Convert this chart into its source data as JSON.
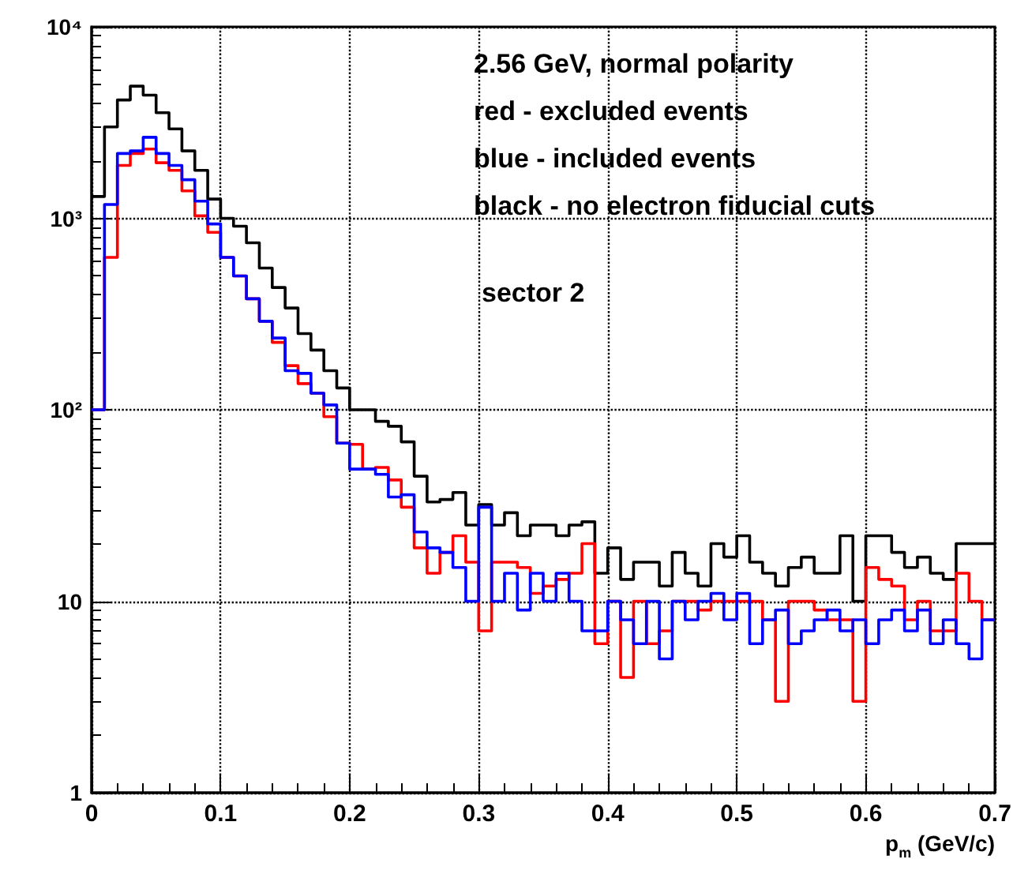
{
  "chart_data": {
    "type": "histogram",
    "xlabel": "p$_{m}$ (GeV/c)",
    "annotations": [
      "2.56 GeV, normal polarity",
      "red - excluded events",
      "blue - included events",
      "black - no electron fiducial cuts",
      "sector 2"
    ],
    "bins": [
      0,
      0.01,
      0.02,
      0.03,
      0.04,
      0.05,
      0.06,
      0.07,
      0.08,
      0.09,
      0.1,
      0.11,
      0.12,
      0.13,
      0.14,
      0.15,
      0.16,
      0.17,
      0.18,
      0.19,
      0.2,
      0.21,
      0.22,
      0.23,
      0.24,
      0.25,
      0.26,
      0.27,
      0.28,
      0.29,
      0.3,
      0.31,
      0.32,
      0.33,
      0.34,
      0.35,
      0.36,
      0.37,
      0.38,
      0.39,
      0.4,
      0.41,
      0.42,
      0.43,
      0.44,
      0.45,
      0.46,
      0.47,
      0.48,
      0.49,
      0.5,
      0.51,
      0.52,
      0.53,
      0.54,
      0.55,
      0.56,
      0.57,
      0.58,
      0.59,
      0.6,
      0.61,
      0.62,
      0.63,
      0.64,
      0.65,
      0.66,
      0.67,
      0.68,
      0.69,
      0.7
    ],
    "series": [
      {
        "color": "#000000",
        "values": [
          1300,
          3000,
          4150,
          4900,
          4400,
          3560,
          2930,
          2250,
          1780,
          1260,
          1000,
          910,
          745,
          550,
          435,
          340,
          250,
          205,
          160,
          130,
          100,
          100,
          87,
          82,
          68,
          45,
          33,
          34,
          37,
          25,
          32,
          25,
          29,
          22,
          25,
          25,
          22,
          25,
          26,
          14,
          19,
          13,
          16,
          16,
          12,
          18,
          14,
          12,
          20,
          17,
          22,
          16,
          14,
          12,
          15,
          17,
          14,
          14,
          22,
          10,
          22,
          22,
          18,
          15,
          17,
          14,
          13,
          20,
          20,
          20
        ]
      },
      {
        "color": "#ff0000",
        "values": [
          100,
          625,
          1890,
          2180,
          2300,
          1950,
          1780,
          1390,
          1030,
          845,
          625,
          500,
          380,
          290,
          225,
          170,
          137,
          122,
          92,
          67,
          66,
          49,
          50,
          43,
          31,
          19,
          14,
          18,
          22,
          16,
          7,
          16,
          16,
          15,
          11,
          12,
          13,
          14,
          20,
          6,
          10,
          4,
          10,
          6,
          7,
          10,
          10,
          9,
          10,
          10,
          10,
          10,
          8,
          3,
          10,
          10,
          9,
          8,
          8,
          3,
          15,
          13,
          12,
          8,
          10,
          7,
          7,
          14,
          10,
          8
        ]
      },
      {
        "color": "#0000ff",
        "values": [
          100,
          1180,
          2180,
          2250,
          2650,
          2180,
          1890,
          1590,
          1230,
          935,
          625,
          500,
          380,
          290,
          237,
          160,
          155,
          122,
          106,
          67,
          49,
          49,
          46,
          35,
          36,
          23,
          19,
          18,
          15,
          10,
          31,
          10,
          14,
          9,
          14,
          10,
          14,
          10,
          7,
          7,
          10,
          8,
          6,
          10,
          5,
          10,
          8,
          10,
          11,
          8,
          11,
          6,
          8,
          9,
          6,
          7,
          8,
          9,
          7,
          8,
          6,
          8,
          9,
          7,
          9,
          6,
          8,
          6,
          5,
          8
        ]
      }
    ],
    "xlim": [
      0,
      0.7
    ],
    "xticks": [
      0,
      0.1,
      0.2,
      0.3,
      0.4,
      0.5,
      0.6,
      0.7
    ],
    "ylim": [
      1,
      10000
    ],
    "yticks": [
      1,
      10,
      {
        "value": 100,
        "label": "10²"
      },
      {
        "value": 1000,
        "label": "10³"
      },
      {
        "value": 10000,
        "label": "10⁴"
      }
    ],
    "log": true,
    "grid": true
  }
}
